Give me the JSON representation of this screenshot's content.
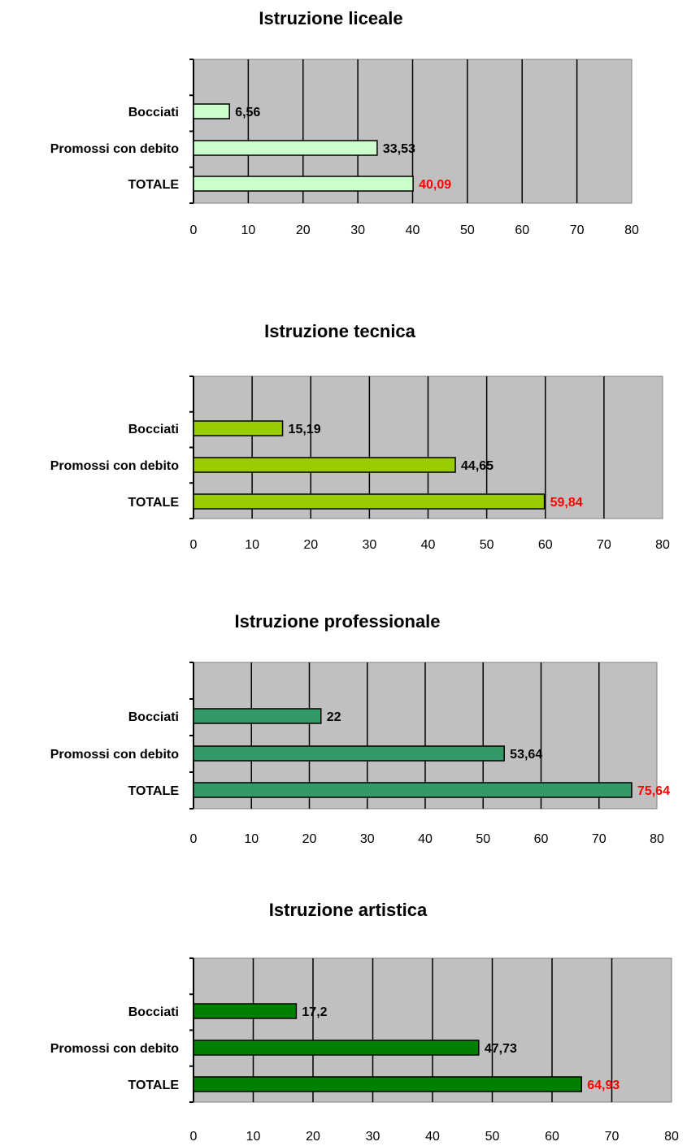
{
  "chart_data": [
    {
      "type": "bar",
      "orientation": "horizontal",
      "title": "Istruzione liceale",
      "categories": [
        "Bocciati",
        "Promossi con debito",
        "TOTALE"
      ],
      "values": [
        6.56,
        33.53,
        40.09
      ],
      "value_labels": [
        "6,56",
        "33,53",
        "40,09"
      ],
      "bar_color": "#ccffcc",
      "xlim": [
        0,
        80
      ],
      "xticks": [
        "0",
        "10",
        "20",
        "30",
        "40",
        "50",
        "60",
        "70",
        "80"
      ],
      "grid": true,
      "legend": false
    },
    {
      "type": "bar",
      "orientation": "horizontal",
      "title": "Istruzione tecnica",
      "categories": [
        "Bocciati",
        "Promossi con debito",
        "TOTALE"
      ],
      "values": [
        15.19,
        44.65,
        59.84
      ],
      "value_labels": [
        "15,19",
        "44,65",
        "59,84"
      ],
      "bar_color": "#99cc00",
      "xlim": [
        0,
        80
      ],
      "xticks": [
        "0",
        "10",
        "20",
        "30",
        "40",
        "50",
        "60",
        "70",
        "80"
      ],
      "grid": true,
      "legend": false
    },
    {
      "type": "bar",
      "orientation": "horizontal",
      "title": "Istruzione professionale",
      "categories": [
        "Bocciati",
        "Promossi con debito",
        "TOTALE"
      ],
      "values": [
        22,
        53.64,
        75.64
      ],
      "value_labels": [
        "22",
        "53,64",
        "75,64"
      ],
      "bar_color": "#339966",
      "xlim": [
        0,
        80
      ],
      "xticks": [
        "0",
        "10",
        "20",
        "30",
        "40",
        "50",
        "60",
        "70",
        "80"
      ],
      "grid": true,
      "legend": false
    },
    {
      "type": "bar",
      "orientation": "horizontal",
      "title": "Istruzione artistica",
      "categories": [
        "Bocciati",
        "Promossi con debito",
        "TOTALE"
      ],
      "values": [
        17.2,
        47.73,
        64.93
      ],
      "value_labels": [
        "17,2",
        "47,73",
        "64,93"
      ],
      "bar_color": "#008000",
      "xlim": [
        0,
        80
      ],
      "xticks": [
        "0",
        "10",
        "20",
        "30",
        "40",
        "50",
        "60",
        "70",
        "80"
      ],
      "grid": true,
      "legend": false
    }
  ],
  "colors": {
    "plot_background": "#c0c0c0",
    "total_label": "#ff0000",
    "label": "#000000"
  }
}
